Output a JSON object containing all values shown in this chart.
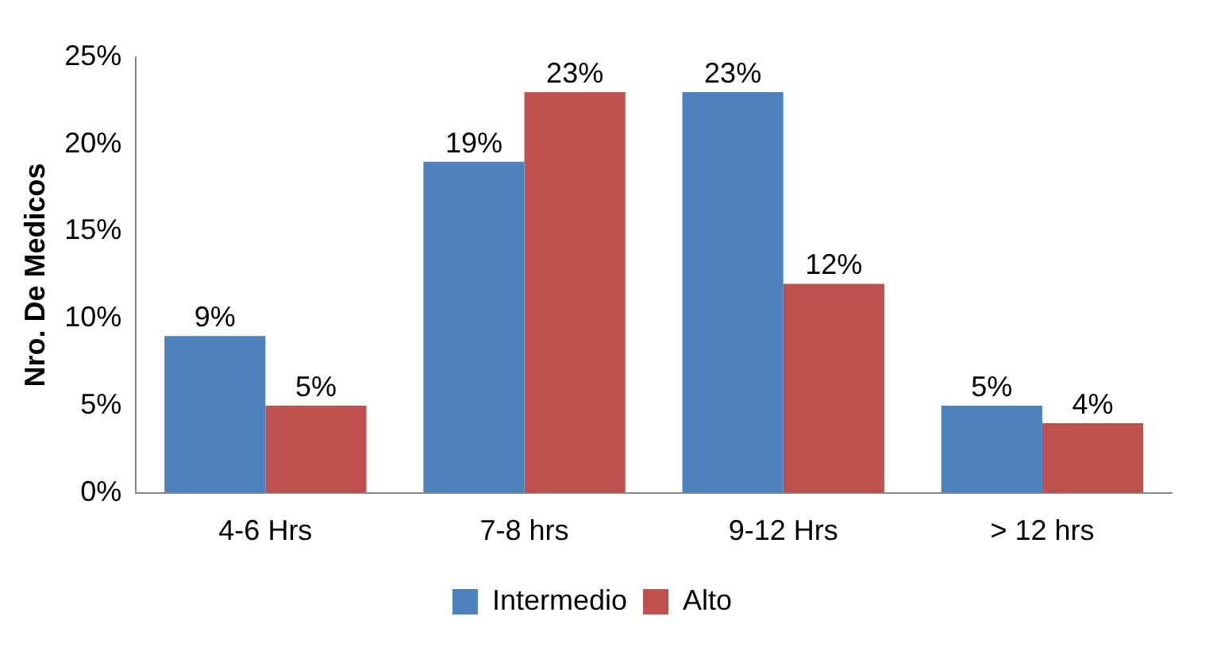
{
  "chart_data": {
    "type": "bar",
    "ylabel": "Nro. De Medicos",
    "categories": [
      "4-6 Hrs",
      "7-8 hrs",
      "9-12 Hrs",
      "> 12 hrs"
    ],
    "series": [
      {
        "name": "Intermedio",
        "color": "#4f81bd",
        "values": [
          9,
          19,
          23,
          5
        ],
        "value_labels": [
          "9%",
          "19%",
          "23%",
          "5%"
        ]
      },
      {
        "name": "Alto",
        "color": "#c0504d",
        "values": [
          5,
          23,
          12,
          4
        ],
        "value_labels": [
          "5%",
          "23%",
          "12%",
          "4%"
        ]
      }
    ],
    "ylim": [
      0,
      25
    ],
    "yticks": [
      {
        "value": 0,
        "label": "0%"
      },
      {
        "value": 5,
        "label": "5%"
      },
      {
        "value": 10,
        "label": "10%"
      },
      {
        "value": 15,
        "label": "15%"
      },
      {
        "value": 20,
        "label": "20%"
      },
      {
        "value": 25,
        "label": "25%"
      }
    ],
    "grid": false,
    "legend": "bottom"
  }
}
